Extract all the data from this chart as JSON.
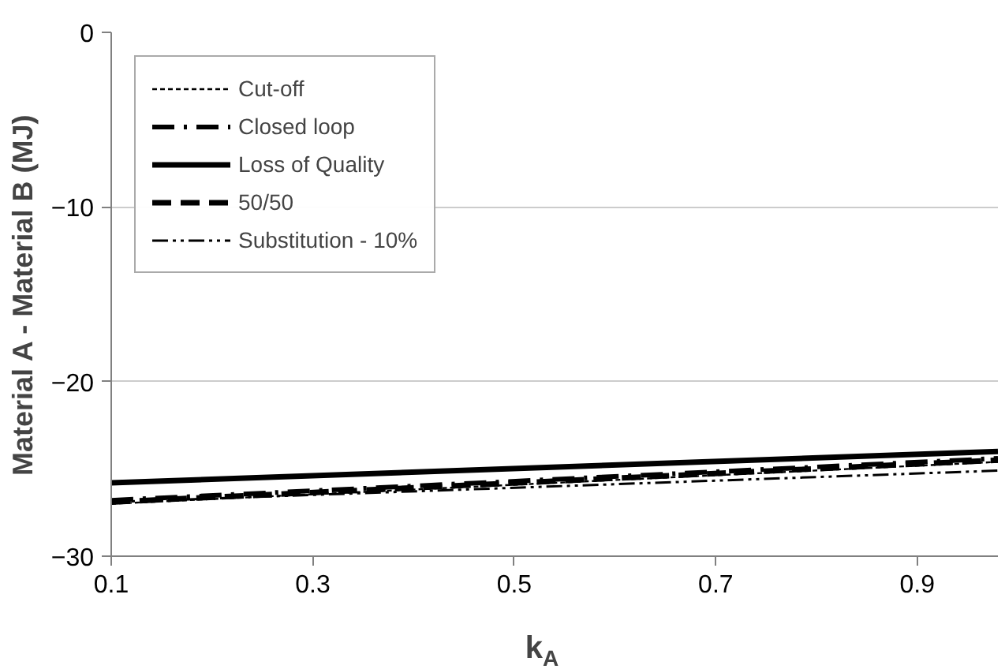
{
  "chart_data": {
    "type": "line",
    "xlabel": "k$_{A}$",
    "ylabel": "Material A - Material B (MJ)",
    "x": [
      0.1,
      0.98
    ],
    "xlim": [
      0.1,
      0.98
    ],
    "ylim": [
      -30,
      0
    ],
    "xticks": [
      0.1,
      0.3,
      0.5,
      0.7,
      0.9
    ],
    "yticks": [
      -30,
      -20,
      -10,
      0
    ],
    "grid": "y",
    "legend": "top left",
    "series": [
      {
        "name": "Cut-off",
        "color": "#000000",
        "values": [
          -27.0,
          -24.6
        ],
        "line_style": "dotted"
      },
      {
        "name": "Closed loop",
        "color": "#000000",
        "values": [
          -26.8,
          -24.4
        ],
        "line_style": "dashdot"
      },
      {
        "name": "Loss of Quality",
        "color": "#000000",
        "values": [
          -25.8,
          -24.0
        ],
        "line_style": "solid"
      },
      {
        "name": "50/50",
        "color": "#000000",
        "values": [
          -26.9,
          -24.5
        ],
        "line_style": "dashed"
      },
      {
        "name": "Substitution - 10%",
        "color": "#000000",
        "values": [
          -26.9,
          -25.1
        ],
        "line_style": "dashdotdot"
      }
    ]
  }
}
